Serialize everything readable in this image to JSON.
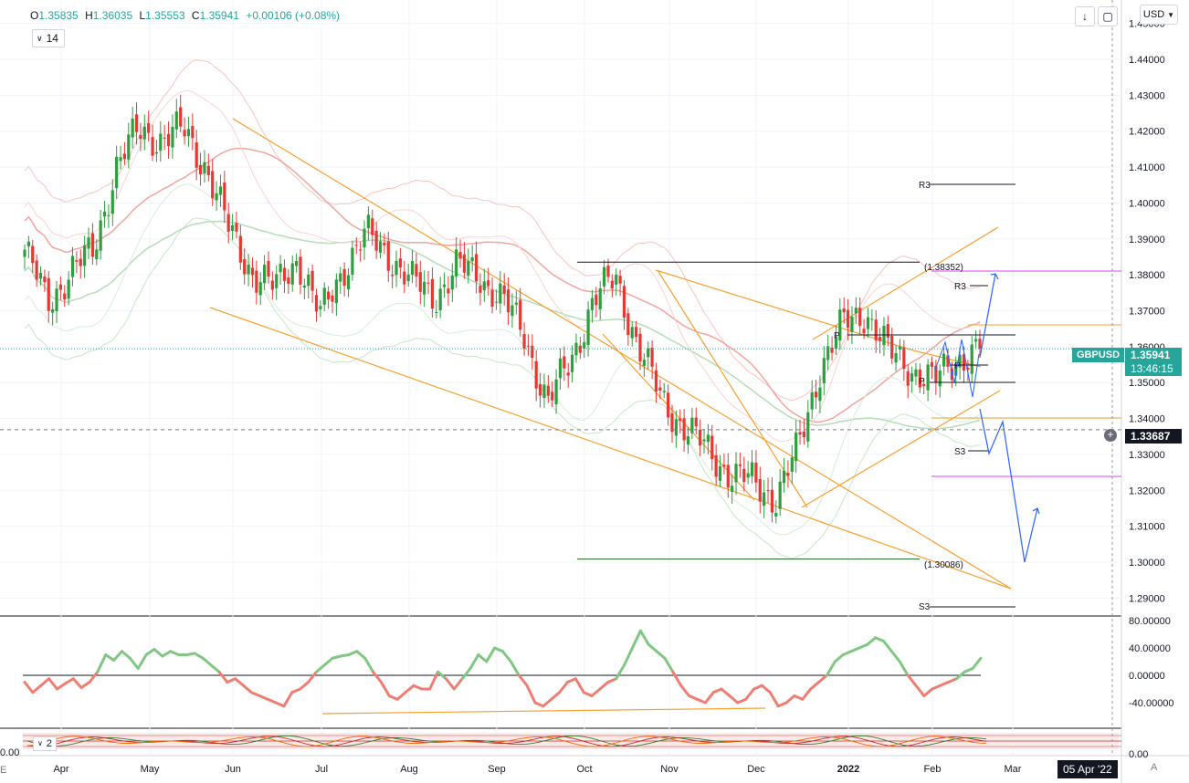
{
  "header": {
    "ohlc": [
      {
        "label": "O",
        "value": "1.35835"
      },
      {
        "label": "H",
        "value": "1.36035"
      },
      {
        "label": "L",
        "value": "1.35553"
      },
      {
        "label": "C",
        "value": "1.35941"
      }
    ],
    "change": "+0.00106 (+0.08%)",
    "period": "14",
    "currency": "USD"
  },
  "price_scale": {
    "ticks": [
      "1.45000",
      "1.44000",
      "1.43000",
      "1.42000",
      "1.41000",
      "1.40000",
      "1.39000",
      "1.38000",
      "1.37000",
      "1.36000",
      "1.35000",
      "1.34000",
      "1.33000",
      "1.32000",
      "1.31000",
      "1.30000",
      "1.29000"
    ],
    "last_price": "1.35941",
    "countdown": "13:46:15",
    "crosshair_price": "1.33687",
    "symbol": "GBPUSD"
  },
  "oscillator_scale": {
    "ticks": [
      "80.00000",
      "40.00000",
      "0.00000",
      "-40.00000"
    ]
  },
  "stoch_scale": {
    "ticks": [
      "0.00"
    ],
    "left_label": "0.00",
    "period": "2"
  },
  "time_axis": {
    "labels": [
      "Apr",
      "May",
      "Jun",
      "Jul",
      "Aug",
      "Sep",
      "Oct",
      "Nov",
      "Dec",
      "2022",
      "Feb",
      "Mar"
    ],
    "crosshair_date": "05 Apr '22",
    "auto_label": "A",
    "left_label": "E"
  },
  "annotations": {
    "fib_high": "(1.38352)",
    "fib_low": "(1.30086)",
    "r3_upper": "R3",
    "r3_lower": "R3",
    "s3_upper": "S3",
    "s3_lower": "S3",
    "pivot_1": "P",
    "pivot_2": "P",
    "pivot_3": "P"
  },
  "colors": {
    "bull": "#26a69a",
    "bull_candle": "#2e9e3e",
    "bear": "#e53935",
    "trendline": "#f7a030",
    "projection": "#2962ff",
    "magenta": "#e040fb",
    "osc_up": "#81c784",
    "osc_down": "#ef7d74"
  },
  "chart_data": {
    "type": "candlestick",
    "symbol": "GBPUSD",
    "x": [
      "Apr",
      "May",
      "Jun",
      "Jul",
      "Aug",
      "Sep",
      "Oct",
      "Nov",
      "Dec",
      "2022",
      "Feb",
      "Mar"
    ],
    "close_path": [
      [
        "Apr",
        1.387
      ],
      [
        "Apr",
        1.372
      ],
      [
        "Apr",
        1.381
      ],
      [
        "May",
        1.386
      ],
      [
        "May",
        1.41
      ],
      [
        "May",
        1.42
      ],
      [
        "Jun",
        1.418
      ],
      [
        "Jun",
        1.42
      ],
      [
        "Jun",
        1.41
      ],
      [
        "Jun",
        1.392
      ],
      [
        "Jul",
        1.381
      ],
      [
        "Jul",
        1.376
      ],
      [
        "Jul",
        1.385
      ],
      [
        "Jul",
        1.368
      ],
      [
        "Jul",
        1.382
      ],
      [
        "Aug",
        1.391
      ],
      [
        "Aug",
        1.386
      ],
      [
        "Aug",
        1.378
      ],
      [
        "Aug",
        1.374
      ],
      [
        "Sep",
        1.382
      ],
      [
        "Sep",
        1.38
      ],
      [
        "Sep",
        1.373
      ],
      [
        "Oct",
        1.363
      ],
      [
        "Oct",
        1.344
      ],
      [
        "Oct",
        1.356
      ],
      [
        "Oct",
        1.373
      ],
      [
        "Oct",
        1.379
      ],
      [
        "Nov",
        1.36
      ],
      [
        "Nov",
        1.345
      ],
      [
        "Nov",
        1.338
      ],
      [
        "Nov",
        1.331
      ],
      [
        "Dec",
        1.325
      ],
      [
        "Dec",
        1.322
      ],
      [
        "Dec",
        1.318
      ],
      [
        "Dec",
        1.331
      ],
      [
        "2022",
        1.355
      ],
      [
        "2022",
        1.366
      ],
      [
        "2022",
        1.37
      ],
      [
        "2022",
        1.358
      ],
      [
        "Feb",
        1.354
      ],
      [
        "Feb",
        1.35
      ],
      [
        "Feb",
        1.357
      ],
      [
        "Feb",
        1.359
      ]
    ],
    "levels": {
      "fib_high": 1.38352,
      "fib_low": 1.30086,
      "last": 1.35941,
      "crosshair": 1.33687
    },
    "ylim": [
      1.285,
      1.455
    ],
    "oscillator": {
      "ylim": [
        -60,
        80
      ],
      "values": [
        -10,
        -25,
        -15,
        -5,
        -20,
        -12,
        -5,
        -18,
        -10,
        5,
        30,
        22,
        35,
        25,
        10,
        30,
        38,
        28,
        35,
        30,
        30,
        32,
        25,
        15,
        5,
        -10,
        -5,
        -15,
        -25,
        -30,
        -35,
        -40,
        -45,
        -25,
        -20,
        -10,
        5,
        15,
        25,
        28,
        30,
        35,
        25,
        5,
        -10,
        -30,
        -35,
        -25,
        -15,
        -20,
        -20,
        5,
        -5,
        -20,
        -5,
        10,
        30,
        20,
        40,
        35,
        20,
        0,
        -15,
        -40,
        -45,
        -35,
        -25,
        -10,
        -5,
        -25,
        -30,
        -20,
        -10,
        -5,
        15,
        40,
        65,
        45,
        35,
        25,
        5,
        -15,
        -30,
        -35,
        -40,
        -25,
        -20,
        -30,
        -40,
        -35,
        -20,
        -15,
        -25,
        -45,
        -40,
        -30,
        -35,
        -20,
        -10,
        0,
        20,
        30,
        35,
        40,
        45,
        55,
        50,
        35,
        20,
        0,
        -15,
        -30,
        -20,
        -15,
        -10,
        -5,
        5,
        10,
        25
      ]
    }
  }
}
